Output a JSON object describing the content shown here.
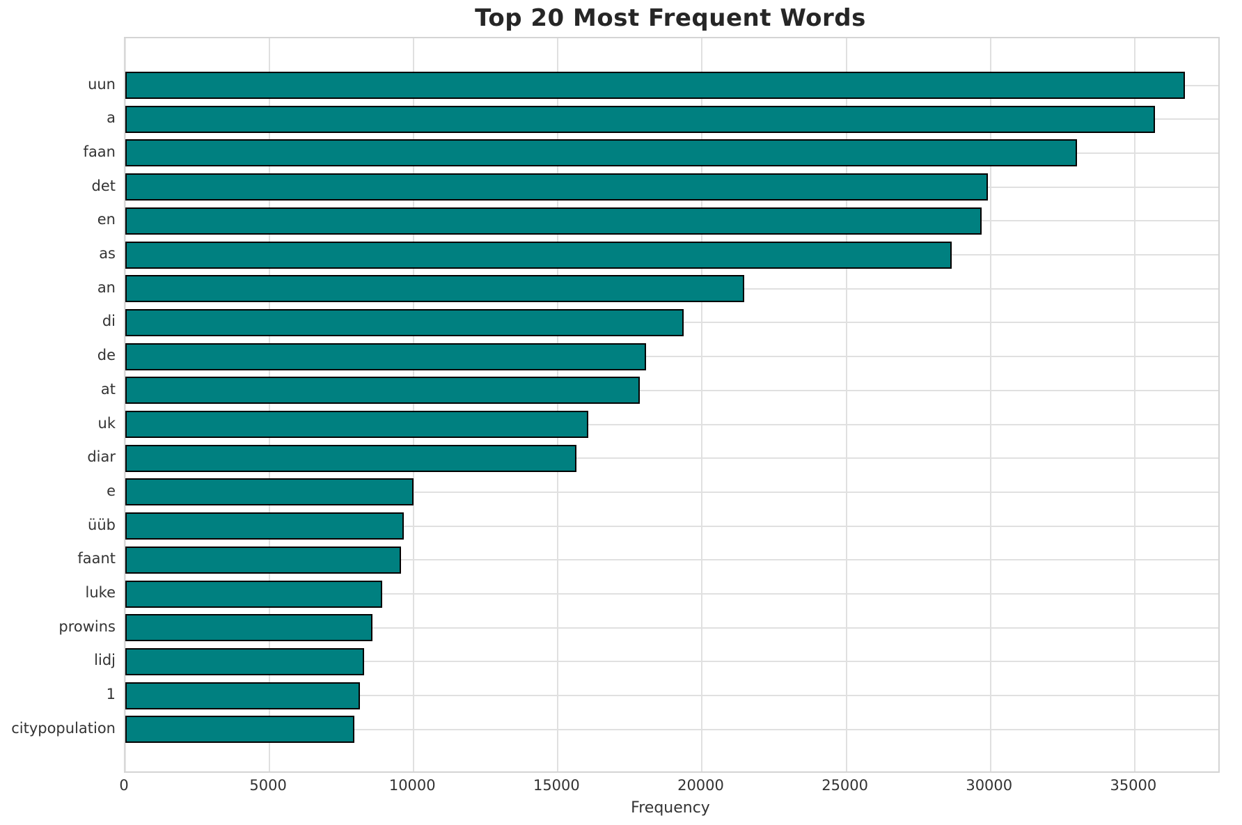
{
  "chart_data": {
    "type": "bar",
    "orientation": "horizontal",
    "title": "Top 20 Most Frequent Words",
    "xlabel": "Frequency",
    "ylabel": "",
    "categories": [
      "uun",
      "a",
      "faan",
      "det",
      "en",
      "as",
      "an",
      "di",
      "de",
      "at",
      "uk",
      "diar",
      "e",
      "üüb",
      "faant",
      "luke",
      "prowins",
      "lidj",
      "1",
      "citypopulation"
    ],
    "values": [
      36750,
      35700,
      33000,
      29900,
      29700,
      28650,
      21450,
      19350,
      18050,
      17850,
      16050,
      15650,
      10000,
      9650,
      9550,
      8900,
      8570,
      8280,
      8130,
      7950
    ],
    "xticks": [
      0,
      5000,
      10000,
      15000,
      20000,
      25000,
      30000,
      35000
    ],
    "xlim": [
      0,
      37900
    ],
    "grid": true,
    "legend_position": "none",
    "colors": {
      "bar_fill": "#008080",
      "bar_edge": "#000000",
      "grid_line": "#e0e0e0",
      "plot_border": "#d4d4d4",
      "title_text": "#262626",
      "tick_text": "#333333",
      "background": "#ffffff"
    }
  }
}
